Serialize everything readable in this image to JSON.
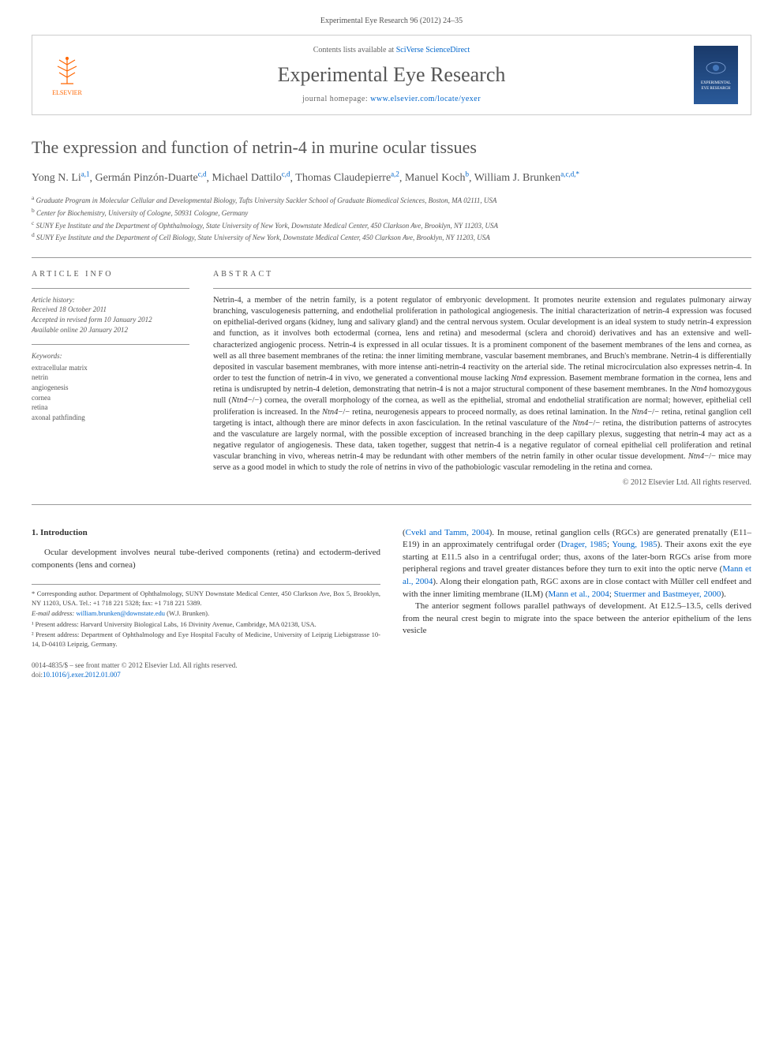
{
  "citation": "Experimental Eye Research 96 (2012) 24–35",
  "header": {
    "contents_prefix": "Contents lists available at ",
    "contents_link": "SciVerse ScienceDirect",
    "journal_name": "Experimental Eye Research",
    "homepage_prefix": "journal homepage: ",
    "homepage_url": "www.elsevier.com/locate/yexer",
    "publisher": "ELSEVIER",
    "cover_text": "EXPERIMENTAL EYE RESEARCH"
  },
  "title": "The expression and function of netrin-4 in murine ocular tissues",
  "authors": [
    {
      "name": "Yong N. Li",
      "aff": "a,1"
    },
    {
      "name": "Germán Pinzón-Duarte",
      "aff": "c,d"
    },
    {
      "name": "Michael Dattilo",
      "aff": "c,d"
    },
    {
      "name": "Thomas Claudepierre",
      "aff": "a,2"
    },
    {
      "name": "Manuel Koch",
      "aff": "b"
    },
    {
      "name": "William J. Brunken",
      "aff": "a,c,d,*"
    }
  ],
  "affiliations": [
    {
      "sup": "a",
      "text": "Graduate Program in Molecular Cellular and Developmental Biology, Tufts University Sackler School of Graduate Biomedical Sciences, Boston, MA 02111, USA"
    },
    {
      "sup": "b",
      "text": "Center for Biochemistry, University of Cologne, 50931 Cologne, Germany"
    },
    {
      "sup": "c",
      "text": "SUNY Eye Institute and the Department of Ophthalmology, State University of New York, Downstate Medical Center, 450 Clarkson Ave, Brooklyn, NY 11203, USA"
    },
    {
      "sup": "d",
      "text": "SUNY Eye Institute and the Department of Cell Biology, State University of New York, Downstate Medical Center, 450 Clarkson Ave, Brooklyn, NY 11203, USA"
    }
  ],
  "article_info": {
    "heading": "ARTICLE INFO",
    "history_label": "Article history:",
    "received": "Received 18 October 2011",
    "accepted": "Accepted in revised form 10 January 2012",
    "online": "Available online 20 January 2012",
    "keywords_label": "Keywords:",
    "keywords": [
      "extracellular matrix",
      "netrin",
      "angiogenesis",
      "cornea",
      "retina",
      "axonal pathfinding"
    ]
  },
  "abstract": {
    "heading": "ABSTRACT",
    "text": "Netrin-4, a member of the netrin family, is a potent regulator of embryonic development. It promotes neurite extension and regulates pulmonary airway branching, vasculogenesis patterning, and endothelial proliferation in pathological angiogenesis. The initial characterization of netrin-4 expression was focused on epithelial-derived organs (kidney, lung and salivary gland) and the central nervous system. Ocular development is an ideal system to study netrin-4 expression and function, as it involves both ectodermal (cornea, lens and retina) and mesodermal (sclera and choroid) derivatives and has an extensive and well-characterized angiogenic process. Netrin-4 is expressed in all ocular tissues. It is a prominent component of the basement membranes of the lens and cornea, as well as all three basement membranes of the retina: the inner limiting membrane, vascular basement membranes, and Bruch's membrane. Netrin-4 is differentially deposited in vascular basement membranes, with more intense anti-netrin-4 reactivity on the arterial side. The retinal microcirculation also expresses netrin-4. In order to test the function of netrin-4 in vivo, we generated a conventional mouse lacking Ntn4 expression. Basement membrane formation in the cornea, lens and retina is undisrupted by netrin-4 deletion, demonstrating that netrin-4 is not a major structural component of these basement membranes. In the Ntn4 homozygous null (Ntn4−/−) cornea, the overall morphology of the cornea, as well as the epithelial, stromal and endothelial stratification are normal; however, epithelial cell proliferation is increased. In the Ntn4−/− retina, neurogenesis appears to proceed normally, as does retinal lamination. In the Ntn4−/− retina, retinal ganglion cell targeting is intact, although there are minor defects in axon fasciculation. In the retinal vasculature of the Ntn4−/− retina, the distribution patterns of astrocytes and the vasculature are largely normal, with the possible exception of increased branching in the deep capillary plexus, suggesting that netrin-4 may act as a negative regulator of angiogenesis. These data, taken together, suggest that netrin-4 is a negative regulator of corneal epithelial cell proliferation and retinal vascular branching in vivo, whereas netrin-4 may be redundant with other members of the netrin family in other ocular tissue development. Ntn4−/− mice may serve as a good model in which to study the role of netrins in vivo of the pathobiologic vascular remodeling in the retina and cornea.",
    "copyright": "© 2012 Elsevier Ltd. All rights reserved."
  },
  "intro": {
    "heading": "1. Introduction",
    "p1": "Ocular development involves neural tube-derived components (retina) and ectoderm-derived components (lens and cornea)",
    "p2_a": "(",
    "p2_link1": "Cvekl and Tamm, 2004",
    "p2_b": "). In mouse, retinal ganglion cells (RGCs) are generated prenatally (E11–E19) in an approximately centrifugal order (",
    "p2_link2": "Drager, 1985",
    "p2_c": "; ",
    "p2_link3": "Young, 1985",
    "p2_d": "). Their axons exit the eye starting at E11.5 also in a centrifugal order; thus, axons of the later-born RGCs arise from more peripheral regions and travel greater distances before they turn to exit into the optic nerve (",
    "p2_link4": "Mann et al., 2004",
    "p2_e": "). Along their elongation path, RGC axons are in close contact with Müller cell endfeet and with the inner limiting membrane (ILM) (",
    "p2_link5": "Mann et al., 2004",
    "p2_f": "; ",
    "p2_link6": "Stuermer and Bastmeyer, 2000",
    "p2_g": ").",
    "p3": "The anterior segment follows parallel pathways of development. At E12.5–13.5, cells derived from the neural crest begin to migrate into the space between the anterior epithelium of the lens vesicle"
  },
  "footnotes": {
    "corr": "* Corresponding author. Department of Ophthalmology, SUNY Downstate Medical Center, 450 Clarkson Ave, Box 5, Brooklyn, NY 11203, USA. Tel.: +1 718 221 5328; fax: +1 718 221 5389.",
    "email_label": "E-mail address: ",
    "email": "william.brunken@downstate.edu",
    "email_suffix": " (W.J. Brunken).",
    "addr1": "¹ Present address: Harvard University Biological Labs, 16 Divinity Avenue, Cambridge, MA 02138, USA.",
    "addr2": "² Present address: Department of Ophthalmology and Eye Hospital Faculty of Medicine, University of Leipzig Liebigstrasse 10-14, D-04103 Leipzig, Germany."
  },
  "footer": {
    "issn": "0014-4835/$ – see front matter © 2012 Elsevier Ltd. All rights reserved.",
    "doi_label": "doi:",
    "doi": "10.1016/j.exer.2012.01.007"
  },
  "colors": {
    "link": "#0066cc",
    "text": "#333333",
    "muted": "#555555",
    "border": "#cccccc",
    "elsevier": "#ff6600"
  }
}
